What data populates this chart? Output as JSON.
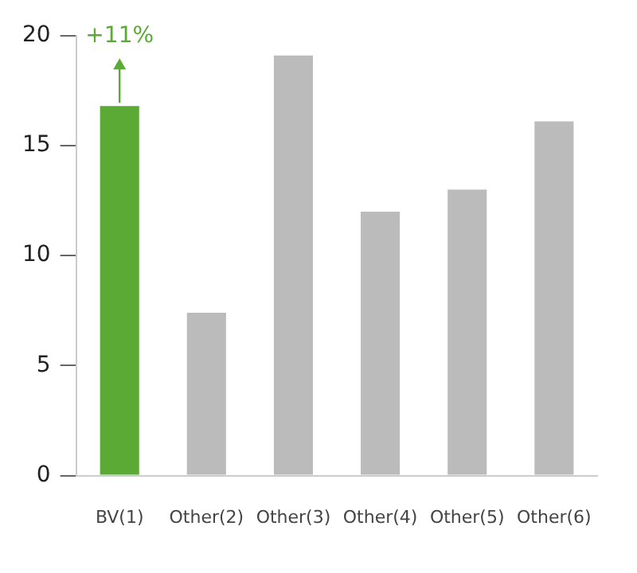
{
  "chart_data": {
    "type": "bar",
    "categories": [
      "BV(1)",
      "Other(2)",
      "Other(3)",
      "Other(4)",
      "Other(5)",
      "Other(6)"
    ],
    "values": [
      16.8,
      7.4,
      19.1,
      12,
      13,
      16.1
    ],
    "colors": [
      "#5aaa35",
      "#bbbbbb",
      "#bbbbbb",
      "#bbbbbb",
      "#bbbbbb",
      "#bbbbbb"
    ],
    "ylim": [
      0,
      20
    ],
    "yticks": [
      0,
      5,
      10,
      15,
      20
    ],
    "grid": false,
    "legend": false,
    "annotations": [
      {
        "text": "+11%",
        "x": "BV(1)",
        "y": 16.8
      }
    ]
  }
}
